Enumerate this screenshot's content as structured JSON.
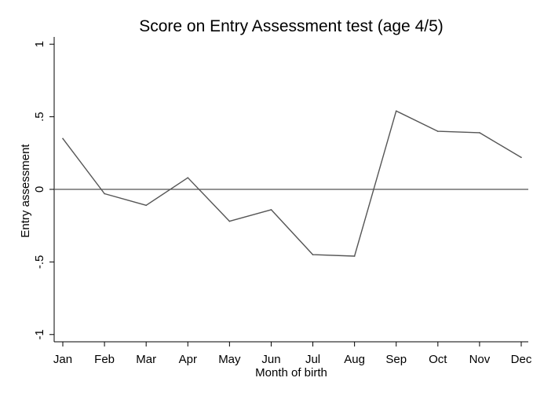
{
  "chart_data": {
    "type": "line",
    "title": "Score on Entry Assessment test (age 4/5)",
    "xlabel": "Month of birth",
    "ylabel": "Entry assessment",
    "categories": [
      "Jan",
      "Feb",
      "Mar",
      "Apr",
      "May",
      "Jun",
      "Jul",
      "Aug",
      "Sep",
      "Oct",
      "Nov",
      "Dec"
    ],
    "yticks": [
      {
        "value": 1,
        "label": "1"
      },
      {
        "value": 0.5,
        "label": ".5"
      },
      {
        "value": 0,
        "label": "0"
      },
      {
        "value": -0.5,
        "label": "-.5"
      },
      {
        "value": -1,
        "label": "-1"
      }
    ],
    "ylim": [
      -1.05,
      1.05
    ],
    "series": [
      {
        "values": [
          0.35,
          -0.03,
          -0.11,
          0.08,
          -0.22,
          -0.14,
          -0.45,
          -0.46,
          0.54,
          0.4,
          0.39,
          0.22
        ]
      }
    ],
    "reference_line": {
      "y": 0
    },
    "grid": false,
    "legend": "none",
    "colors": {
      "series": "#555555",
      "reference": "#555555",
      "axis": "#000000",
      "background": "#ffffff"
    }
  }
}
